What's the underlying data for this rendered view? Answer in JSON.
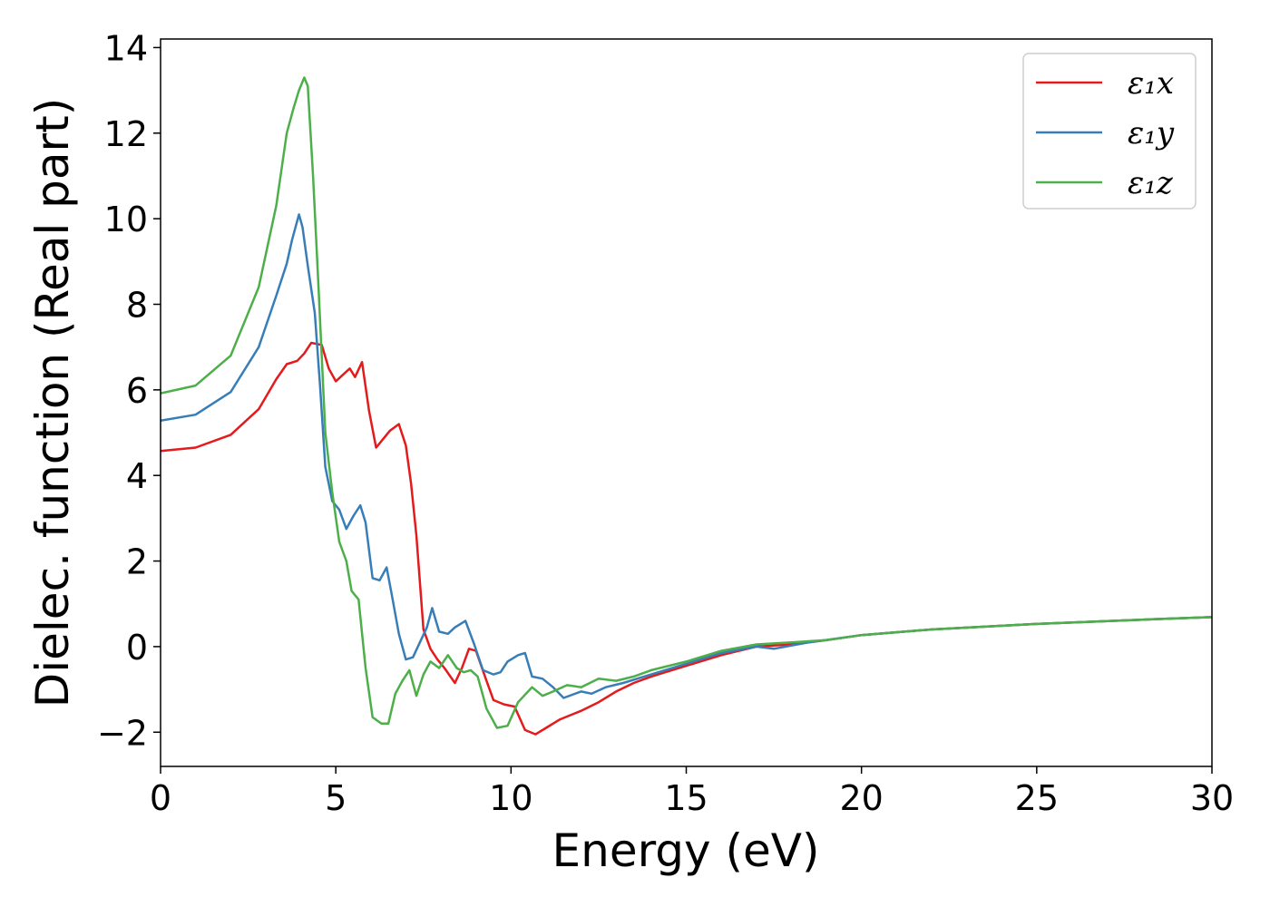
{
  "chart_data": {
    "type": "line",
    "xlabel": "Energy (eV)",
    "ylabel": "Dielec. function (Real part)",
    "xlim": [
      0,
      30
    ],
    "ylim": [
      -2.8,
      14.2
    ],
    "xticks": [
      0,
      5,
      10,
      15,
      20,
      25,
      30
    ],
    "yticks": [
      -2,
      0,
      2,
      4,
      6,
      8,
      10,
      12,
      14
    ],
    "xtick_labels": [
      "0",
      "5",
      "10",
      "15",
      "20",
      "25",
      "30"
    ],
    "ytick_labels": [
      "−2",
      "0",
      "2",
      "4",
      "6",
      "8",
      "10",
      "12",
      "14"
    ],
    "grid": false,
    "legend_position": "top-right",
    "series": [
      {
        "name": "ε₁x",
        "color": "#e41a1c",
        "points": [
          [
            0,
            4.57
          ],
          [
            1,
            4.65
          ],
          [
            2,
            4.95
          ],
          [
            2.8,
            5.55
          ],
          [
            3.3,
            6.25
          ],
          [
            3.6,
            6.6
          ],
          [
            3.9,
            6.68
          ],
          [
            4.1,
            6.85
          ],
          [
            4.3,
            7.1
          ],
          [
            4.6,
            7.05
          ],
          [
            4.8,
            6.5
          ],
          [
            5.0,
            6.2
          ],
          [
            5.2,
            6.35
          ],
          [
            5.4,
            6.5
          ],
          [
            5.55,
            6.3
          ],
          [
            5.75,
            6.65
          ],
          [
            5.95,
            5.5
          ],
          [
            6.15,
            4.65
          ],
          [
            6.35,
            4.85
          ],
          [
            6.55,
            5.05
          ],
          [
            6.8,
            5.2
          ],
          [
            7.0,
            4.7
          ],
          [
            7.15,
            3.8
          ],
          [
            7.3,
            2.6
          ],
          [
            7.5,
            0.4
          ],
          [
            7.7,
            -0.05
          ],
          [
            7.9,
            -0.3
          ],
          [
            8.1,
            -0.5
          ],
          [
            8.4,
            -0.85
          ],
          [
            8.6,
            -0.5
          ],
          [
            8.8,
            -0.05
          ],
          [
            9.0,
            -0.1
          ],
          [
            9.3,
            -0.8
          ],
          [
            9.5,
            -1.25
          ],
          [
            9.8,
            -1.35
          ],
          [
            10.1,
            -1.4
          ],
          [
            10.4,
            -1.95
          ],
          [
            10.7,
            -2.05
          ],
          [
            11.0,
            -1.9
          ],
          [
            11.4,
            -1.7
          ],
          [
            12.0,
            -1.5
          ],
          [
            12.5,
            -1.3
          ],
          [
            13.0,
            -1.05
          ],
          [
            13.5,
            -0.85
          ],
          [
            14.0,
            -0.7
          ],
          [
            15.0,
            -0.45
          ],
          [
            16.0,
            -0.2
          ],
          [
            17.0,
            0.0
          ],
          [
            18.0,
            0.05
          ],
          [
            19.0,
            0.15
          ],
          [
            20.0,
            0.27
          ],
          [
            22.0,
            0.4
          ],
          [
            25.0,
            0.53
          ],
          [
            28.0,
            0.63
          ],
          [
            30.0,
            0.69
          ]
        ]
      },
      {
        "name": "ε₁y",
        "color": "#377eb8",
        "points": [
          [
            0,
            5.28
          ],
          [
            1,
            5.42
          ],
          [
            2,
            5.95
          ],
          [
            2.8,
            7.0
          ],
          [
            3.3,
            8.2
          ],
          [
            3.6,
            8.95
          ],
          [
            3.75,
            9.5
          ],
          [
            3.95,
            10.1
          ],
          [
            4.05,
            9.8
          ],
          [
            4.2,
            8.9
          ],
          [
            4.4,
            7.8
          ],
          [
            4.55,
            6.1
          ],
          [
            4.7,
            4.2
          ],
          [
            4.9,
            3.4
          ],
          [
            5.1,
            3.2
          ],
          [
            5.3,
            2.75
          ],
          [
            5.5,
            3.05
          ],
          [
            5.7,
            3.3
          ],
          [
            5.85,
            2.9
          ],
          [
            6.05,
            1.6
          ],
          [
            6.25,
            1.55
          ],
          [
            6.45,
            1.85
          ],
          [
            6.6,
            1.2
          ],
          [
            6.8,
            0.3
          ],
          [
            7.0,
            -0.3
          ],
          [
            7.2,
            -0.25
          ],
          [
            7.4,
            0.1
          ],
          [
            7.6,
            0.45
          ],
          [
            7.75,
            0.9
          ],
          [
            7.95,
            0.35
          ],
          [
            8.2,
            0.3
          ],
          [
            8.4,
            0.45
          ],
          [
            8.7,
            0.6
          ],
          [
            8.95,
            0.05
          ],
          [
            9.2,
            -0.55
          ],
          [
            9.5,
            -0.65
          ],
          [
            9.7,
            -0.6
          ],
          [
            9.9,
            -0.35
          ],
          [
            10.2,
            -0.2
          ],
          [
            10.4,
            -0.15
          ],
          [
            10.6,
            -0.7
          ],
          [
            10.9,
            -0.75
          ],
          [
            11.2,
            -0.95
          ],
          [
            11.5,
            -1.2
          ],
          [
            12.0,
            -1.05
          ],
          [
            12.3,
            -1.1
          ],
          [
            12.7,
            -0.95
          ],
          [
            13.2,
            -0.85
          ],
          [
            14.0,
            -0.65
          ],
          [
            15.0,
            -0.4
          ],
          [
            16.0,
            -0.15
          ],
          [
            17.0,
            0.0
          ],
          [
            17.5,
            -0.05
          ],
          [
            18.5,
            0.1
          ],
          [
            20.0,
            0.27
          ],
          [
            22.0,
            0.4
          ],
          [
            25.0,
            0.53
          ],
          [
            28.0,
            0.63
          ],
          [
            30.0,
            0.69
          ]
        ]
      },
      {
        "name": "ε₁z",
        "color": "#4daf4a",
        "points": [
          [
            0,
            5.92
          ],
          [
            1,
            6.1
          ],
          [
            2,
            6.8
          ],
          [
            2.8,
            8.4
          ],
          [
            3.3,
            10.3
          ],
          [
            3.6,
            12.0
          ],
          [
            3.8,
            12.6
          ],
          [
            3.95,
            13.0
          ],
          [
            4.1,
            13.3
          ],
          [
            4.2,
            13.1
          ],
          [
            4.35,
            11.0
          ],
          [
            4.5,
            8.5
          ],
          [
            4.7,
            5.0
          ],
          [
            4.9,
            3.6
          ],
          [
            5.1,
            2.45
          ],
          [
            5.3,
            2.0
          ],
          [
            5.45,
            1.3
          ],
          [
            5.65,
            1.1
          ],
          [
            5.85,
            -0.5
          ],
          [
            6.05,
            -1.65
          ],
          [
            6.3,
            -1.8
          ],
          [
            6.5,
            -1.8
          ],
          [
            6.7,
            -1.1
          ],
          [
            6.9,
            -0.8
          ],
          [
            7.1,
            -0.55
          ],
          [
            7.3,
            -1.15
          ],
          [
            7.5,
            -0.65
          ],
          [
            7.7,
            -0.35
          ],
          [
            7.95,
            -0.5
          ],
          [
            8.2,
            -0.2
          ],
          [
            8.45,
            -0.5
          ],
          [
            8.65,
            -0.6
          ],
          [
            8.85,
            -0.55
          ],
          [
            9.05,
            -0.7
          ],
          [
            9.3,
            -1.45
          ],
          [
            9.6,
            -1.9
          ],
          [
            9.9,
            -1.85
          ],
          [
            10.2,
            -1.3
          ],
          [
            10.6,
            -0.95
          ],
          [
            10.9,
            -1.15
          ],
          [
            11.2,
            -1.05
          ],
          [
            11.6,
            -0.9
          ],
          [
            12.0,
            -0.95
          ],
          [
            12.5,
            -0.75
          ],
          [
            13.0,
            -0.8
          ],
          [
            13.5,
            -0.7
          ],
          [
            14.0,
            -0.55
          ],
          [
            15.0,
            -0.35
          ],
          [
            16.0,
            -0.1
          ],
          [
            17.0,
            0.05
          ],
          [
            18.0,
            0.1
          ],
          [
            19.0,
            0.15
          ],
          [
            20.0,
            0.27
          ],
          [
            22.0,
            0.4
          ],
          [
            25.0,
            0.53
          ],
          [
            28.0,
            0.63
          ],
          [
            30.0,
            0.69
          ]
        ]
      }
    ]
  }
}
